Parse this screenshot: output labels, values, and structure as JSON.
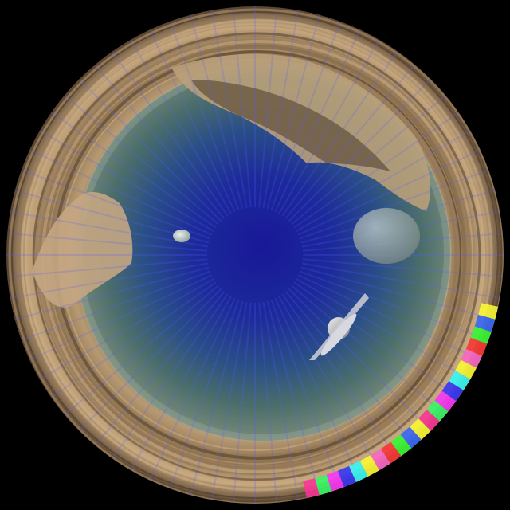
{
  "scene": {
    "description_kind": "fisheye panorama",
    "colors": {
      "background": "#000000",
      "sky_center": "#1b1a9a",
      "sky_mid": "#1f3f8e",
      "sky_outer": "#4b6e6a",
      "haze": "#a3b3a2",
      "ring_rock": "#b79a72",
      "ring_dark": "#3a2a1c",
      "ray_color": "#5a5cff"
    },
    "features": {
      "moon_small": "moon",
      "moon_large": "planet",
      "ufo": "flying-saucer",
      "color_bars": [
        "#ffff33",
        "#3366ff",
        "#33ff33",
        "#ff3333",
        "#ff66cc",
        "#ffff33",
        "#33ffff",
        "#3333ff",
        "#ff33ff",
        "#33ff66",
        "#ff3399"
      ]
    }
  }
}
